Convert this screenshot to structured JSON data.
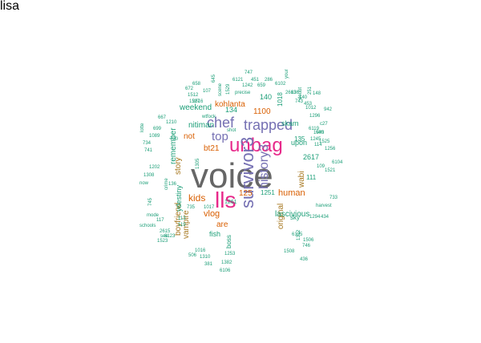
{
  "palette": {
    "gray": "#666666",
    "pink": "#e7298a",
    "purple": "#7570b3",
    "orange": "#d95f02",
    "teal": "#1b9e77",
    "olive": "#a6761d"
  },
  "words": [
    {
      "text": "voice",
      "color": "gray"
    },
    {
      "text": "unbag",
      "color": "pink"
    },
    {
      "text": "lls",
      "color": "pink"
    },
    {
      "text": "survivor3",
      "color": "purple"
    },
    {
      "text": "history3",
      "color": "purple"
    },
    {
      "text": "trapped",
      "color": "purple"
    },
    {
      "text": "chef",
      "color": "purple"
    },
    {
      "text": "top",
      "color": "purple"
    },
    {
      "text": "kids",
      "color": "orange"
    },
    {
      "text": "human",
      "color": "orange"
    },
    {
      "text": "vlog",
      "color": "orange"
    },
    {
      "text": "are",
      "color": "orange"
    },
    {
      "text": "not",
      "color": "orange"
    },
    {
      "text": "bt21",
      "color": "orange"
    },
    {
      "text": "kohlanta",
      "color": "orange"
    },
    {
      "text": "1100",
      "color": "orange"
    },
    {
      "text": "125",
      "color": "orange"
    },
    {
      "text": "boyfriend",
      "color": "olive"
    },
    {
      "text": "vampire",
      "color": "olive"
    },
    {
      "text": "story",
      "color": "olive"
    },
    {
      "text": "original",
      "color": "olive"
    },
    {
      "text": "wabi",
      "color": "olive"
    },
    {
      "text": "weekend",
      "color": "teal"
    },
    {
      "text": "remember",
      "color": "teal"
    },
    {
      "text": "nitiman",
      "color": "teal"
    },
    {
      "text": "ydestiny",
      "color": "teal"
    },
    {
      "text": "lascivious",
      "color": "teal"
    },
    {
      "text": "upon",
      "color": "teal"
    },
    {
      "text": "skam",
      "color": "teal"
    },
    {
      "text": "sky",
      "color": "teal"
    },
    {
      "text": "fish",
      "color": "teal"
    },
    {
      "text": "boss",
      "color": "teal"
    },
    {
      "text": "140",
      "color": "teal"
    },
    {
      "text": "1018",
      "color": "teal"
    },
    {
      "text": "134",
      "color": "teal"
    },
    {
      "text": "2617",
      "color": "teal"
    },
    {
      "text": "135",
      "color": "teal"
    },
    {
      "text": "111",
      "color": "teal"
    },
    {
      "text": "1251",
      "color": "teal"
    },
    {
      "text": "1261",
      "color": "teal"
    },
    {
      "text": "747",
      "color": "teal"
    },
    {
      "text": "6121",
      "color": "teal"
    },
    {
      "text": "451",
      "color": "teal"
    },
    {
      "text": "286",
      "color": "teal"
    },
    {
      "text": "6102",
      "color": "teal"
    },
    {
      "text": "1242",
      "color": "teal"
    },
    {
      "text": "precise",
      "color": "teal"
    },
    {
      "text": "659",
      "color": "teal"
    },
    {
      "text": "672",
      "color": "teal"
    },
    {
      "text": "1512",
      "color": "teal"
    },
    {
      "text": "1527",
      "color": "teal"
    },
    {
      "text": "2616",
      "color": "teal"
    },
    {
      "text": "107",
      "color": "teal"
    },
    {
      "text": "658",
      "color": "teal"
    },
    {
      "text": "645",
      "color": "teal"
    },
    {
      "text": "scene",
      "color": "teal"
    },
    {
      "text": "1529",
      "color": "teal"
    },
    {
      "text": "636",
      "color": "teal"
    },
    {
      "text": "2613",
      "color": "teal"
    },
    {
      "text": "743",
      "color": "teal"
    },
    {
      "text": "453",
      "color": "teal"
    },
    {
      "text": "140",
      "color": "teal"
    },
    {
      "text": "1296",
      "color": "teal"
    },
    {
      "text": "c27",
      "color": "teal"
    },
    {
      "text": "6119",
      "color": "teal"
    },
    {
      "text": "1503",
      "color": "teal"
    },
    {
      "text": "1245",
      "color": "teal"
    },
    {
      "text": "1525",
      "color": "teal"
    },
    {
      "text": "1256",
      "color": "teal"
    },
    {
      "text": "6104",
      "color": "teal"
    },
    {
      "text": "1521",
      "color": "teal"
    },
    {
      "text": "733",
      "color": "teal"
    },
    {
      "text": "harvest",
      "color": "teal"
    },
    {
      "text": "434",
      "color": "teal"
    },
    {
      "text": "1294",
      "color": "teal"
    },
    {
      "text": "746",
      "color": "teal"
    },
    {
      "text": "1506",
      "color": "teal"
    },
    {
      "text": "1508",
      "color": "teal"
    },
    {
      "text": "436",
      "color": "teal"
    },
    {
      "text": "1253",
      "color": "teal"
    },
    {
      "text": "1382",
      "color": "teal"
    },
    {
      "text": "6106",
      "color": "teal"
    },
    {
      "text": "381",
      "color": "teal"
    },
    {
      "text": "506",
      "color": "teal"
    },
    {
      "text": "1310",
      "color": "teal"
    },
    {
      "text": "1016",
      "color": "teal"
    },
    {
      "text": "2615",
      "color": "teal"
    },
    {
      "text": "6123",
      "color": "teal"
    },
    {
      "text": "1523",
      "color": "teal"
    },
    {
      "text": "117",
      "color": "teal"
    },
    {
      "text": "schools",
      "color": "teal"
    },
    {
      "text": "see",
      "color": "teal"
    },
    {
      "text": "mode",
      "color": "teal"
    },
    {
      "text": "745",
      "color": "teal"
    },
    {
      "text": "113",
      "color": "teal"
    },
    {
      "text": "119",
      "color": "teal"
    },
    {
      "text": "735",
      "color": "teal"
    },
    {
      "text": "1017",
      "color": "teal"
    },
    {
      "text": "1308",
      "color": "teal"
    },
    {
      "text": "now",
      "color": "teal"
    },
    {
      "text": "1202",
      "color": "teal"
    },
    {
      "text": "741",
      "color": "teal"
    },
    {
      "text": "734",
      "color": "teal"
    },
    {
      "text": "1089",
      "color": "teal"
    },
    {
      "text": "699",
      "color": "teal"
    },
    {
      "text": "667",
      "color": "teal"
    },
    {
      "text": "1210",
      "color": "teal"
    },
    {
      "text": "wtfock",
      "color": "teal"
    },
    {
      "text": "shot",
      "color": "teal"
    },
    {
      "text": "730",
      "color": "teal"
    },
    {
      "text": "crime",
      "color": "teal"
    },
    {
      "text": "136",
      "color": "teal"
    },
    {
      "text": "1305",
      "color": "teal"
    },
    {
      "text": "6125",
      "color": "teal"
    },
    {
      "text": "1312",
      "color": "teal"
    },
    {
      "text": "942",
      "color": "teal"
    },
    {
      "text": "can",
      "color": "teal"
    },
    {
      "text": "114",
      "color": "teal"
    },
    {
      "text": "109",
      "color": "teal"
    },
    {
      "text": "148",
      "color": "teal"
    },
    {
      "text": "1012",
      "color": "teal"
    },
    {
      "text": "251",
      "color": "teal"
    },
    {
      "text": "doubt",
      "color": "teal"
    },
    {
      "text": "lotte",
      "color": "teal"
    },
    {
      "text": "your",
      "color": "teal"
    },
    {
      "text": "lisa",
      "color": "teal"
    }
  ]
}
